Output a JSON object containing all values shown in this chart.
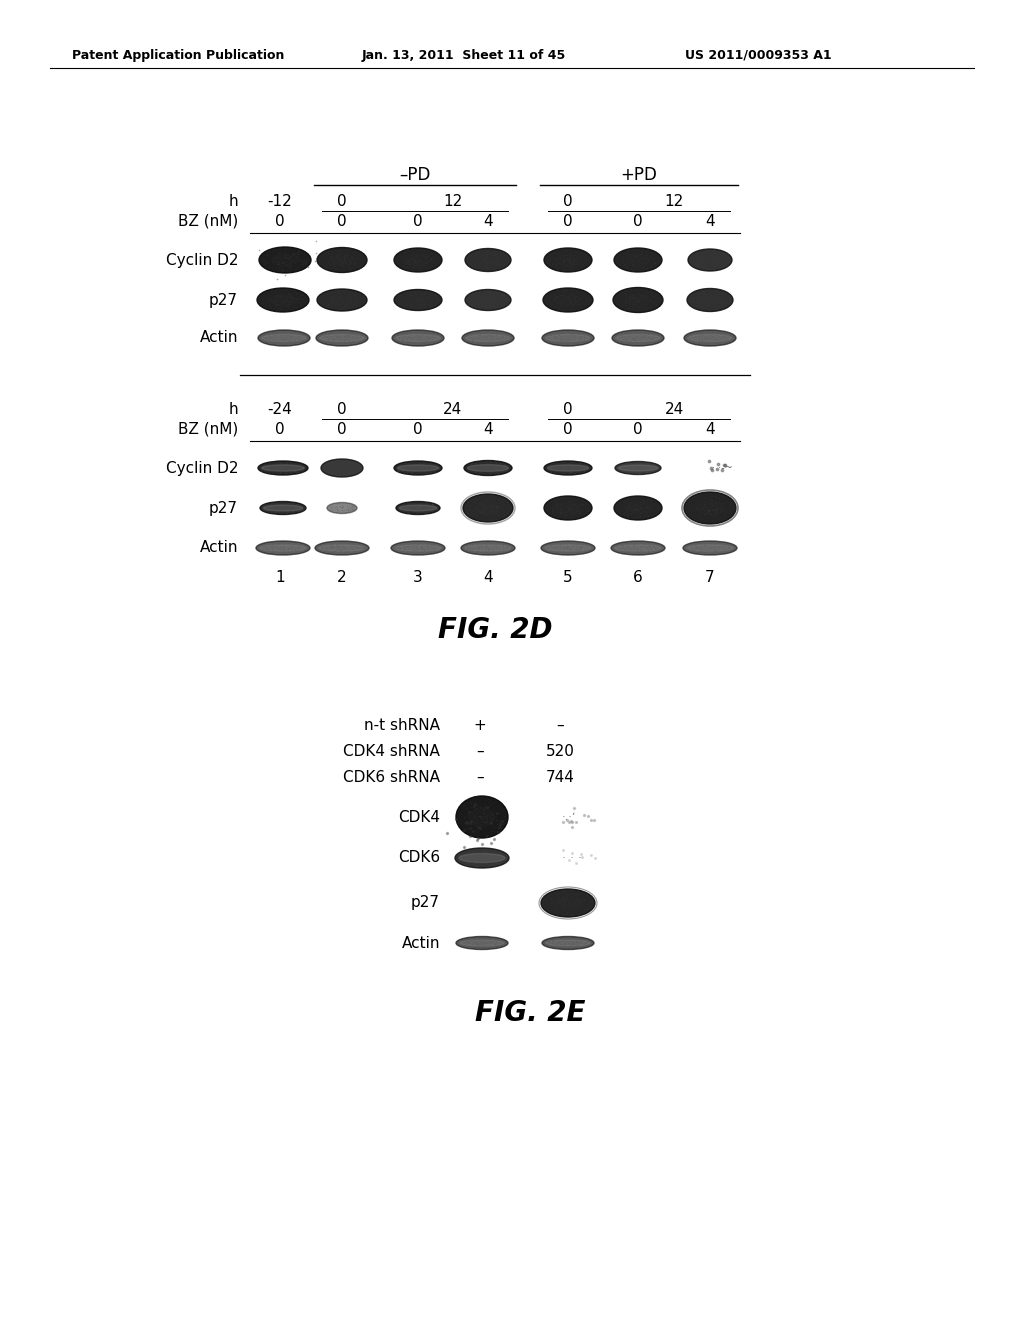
{
  "header_left": "Patent Application Publication",
  "header_mid": "Jan. 13, 2011  Sheet 11 of 45",
  "header_right": "US 2011/0009353 A1",
  "fig2d_title": "FIG. 2D",
  "fig2e_title": "FIG. 2E",
  "panel_top": {
    "col_header_pd_minus": "–PD",
    "col_header_pd_plus": "+PD",
    "h_label": "h",
    "bz_label": "BZ (nM)",
    "bz_values_top": [
      "0",
      "0",
      "0",
      "4",
      "0",
      "0",
      "4"
    ]
  },
  "panel_bottom": {
    "bz_values": [
      "0",
      "0",
      "0",
      "4",
      "0",
      "0",
      "4"
    ],
    "lane_numbers": [
      "1",
      "2",
      "3",
      "4",
      "5",
      "6",
      "7"
    ]
  },
  "bg_color": "#ffffff",
  "text_color": "#000000"
}
